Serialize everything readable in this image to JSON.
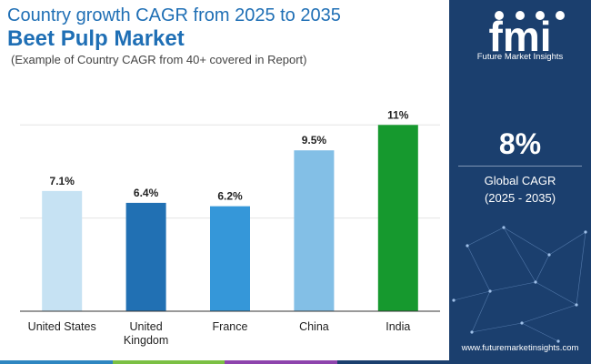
{
  "header": {
    "title_line1": "Country growth CAGR from 2025 to 2035",
    "title_line2": "Beet Pulp Market",
    "subtitle": "(Example of Country CAGR from 40+ covered in Report)"
  },
  "sidebar": {
    "logo_text": "fmi",
    "logo_caption": "Future Market Insights",
    "cagr_value": "8%",
    "cagr_label_line1": "Global CAGR",
    "cagr_label_line2": "(2025 - 2035)",
    "website": "www.futuremarketinsights.com"
  },
  "colors": {
    "title": "#1f6fb5",
    "sidebar_bg": "#1b3f6e",
    "stripe": [
      "#2e86c1",
      "#7bc043",
      "#8e44ad",
      "#1b3f6e"
    ]
  },
  "chart_data": {
    "type": "bar",
    "title": "Country growth CAGR from 2025 to 2035",
    "categories": [
      "United States",
      "United Kingdom",
      "France",
      "China",
      "India"
    ],
    "category_lines": [
      [
        "United States"
      ],
      [
        "United",
        "Kingdom"
      ],
      [
        "France"
      ],
      [
        "China"
      ],
      [
        "India"
      ]
    ],
    "values": [
      7.1,
      6.4,
      6.2,
      9.5,
      11
    ],
    "value_labels": [
      "7.1%",
      "6.4%",
      "6.2%",
      "9.5%",
      "11%"
    ],
    "bar_colors": [
      "#c6e2f3",
      "#2170b3",
      "#3597d9",
      "#83bfe6",
      "#16992e"
    ],
    "ylim": [
      0,
      11.5
    ],
    "gridlines": [
      5.5,
      11
    ],
    "xlabel": "",
    "ylabel": ""
  }
}
